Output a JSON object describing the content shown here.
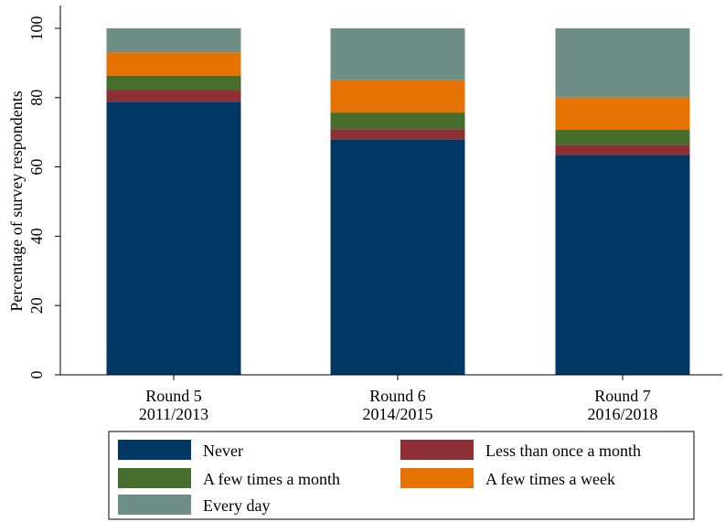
{
  "chart_data": {
    "type": "bar",
    "stacked": true,
    "title": "",
    "xlabel": "",
    "ylabel": "Percentage of survey respondents",
    "ylim": [
      0,
      100
    ],
    "yticks": [
      0,
      20,
      40,
      60,
      80,
      100
    ],
    "grid": false,
    "legend_position": "bottom",
    "categories": [
      {
        "name": "Round 5",
        "years": "2011/2013"
      },
      {
        "name": "Round 6",
        "years": "2014/2015"
      },
      {
        "name": "Round 7",
        "years": "2016/2018"
      }
    ],
    "series": [
      {
        "name": "Never",
        "color": "#003865",
        "values": [
          78.8,
          67.9,
          63.5
        ]
      },
      {
        "name": "Less than once a month",
        "color": "#8E2F35",
        "values": [
          3.4,
          3.0,
          2.9
        ]
      },
      {
        "name": "A few times a month",
        "color": "#466D2C",
        "values": [
          4.1,
          4.8,
          4.3
        ]
      },
      {
        "name": "A few times a week",
        "color": "#E47303",
        "values": [
          6.8,
          9.3,
          9.3
        ]
      },
      {
        "name": "Every day",
        "color": "#6F8F86",
        "values": [
          6.9,
          15.0,
          20.0
        ]
      }
    ]
  }
}
